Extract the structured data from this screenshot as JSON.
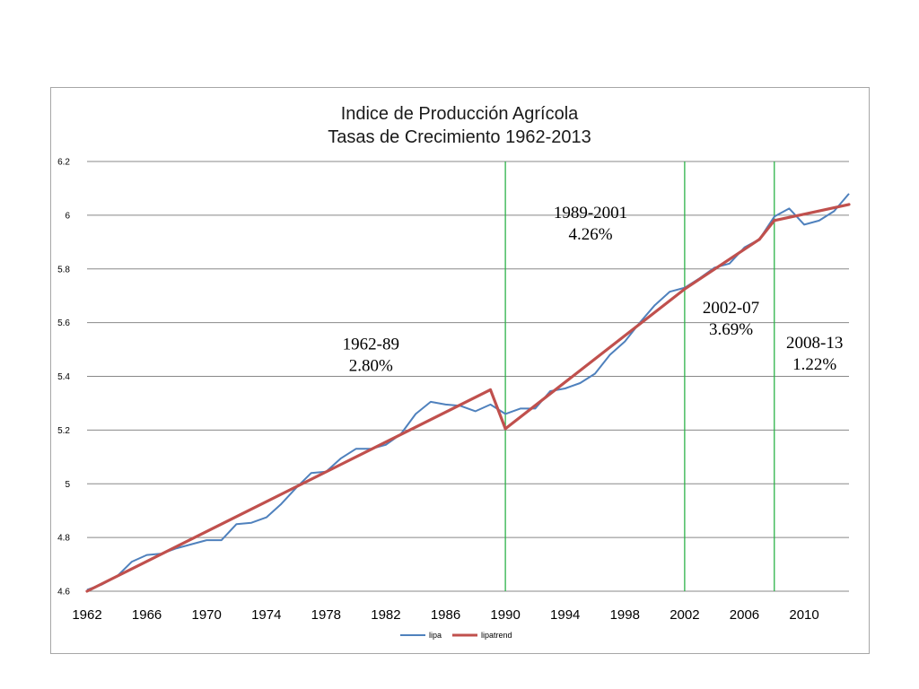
{
  "chart_data": {
    "type": "line",
    "title": [
      "Indice de Producción Agrícola",
      "Tasas de Crecimiento 1962-2013"
    ],
    "xlabel": "",
    "ylabel": "",
    "xlim": [
      1962,
      2013
    ],
    "ylim": [
      4.6,
      6.2
    ],
    "yticks": [
      "4.6",
      "4.8",
      "5",
      "5.2",
      "5.4",
      "5.6",
      "5.8",
      "6",
      "6.2"
    ],
    "xticks": [
      "1962",
      "1966",
      "1970",
      "1974",
      "1978",
      "1982",
      "1986",
      "1990",
      "1994",
      "1998",
      "2002",
      "2006",
      "2010"
    ],
    "grid": "horizontal",
    "legend_position": "bottom",
    "vertical_lines": [
      1990,
      2002,
      2008
    ],
    "series": [
      {
        "name": "lipa",
        "color": "#4f81bd",
        "x": [
          1962,
          1963,
          1964,
          1965,
          1966,
          1967,
          1968,
          1969,
          1970,
          1971,
          1972,
          1973,
          1974,
          1975,
          1976,
          1977,
          1978,
          1979,
          1980,
          1981,
          1982,
          1983,
          1984,
          1985,
          1986,
          1987,
          1988,
          1989,
          1990,
          1991,
          1992,
          1993,
          1994,
          1995,
          1996,
          1997,
          1998,
          1999,
          2000,
          2001,
          2002,
          2003,
          2004,
          2005,
          2006,
          2007,
          2008,
          2009,
          2010,
          2011,
          2012,
          2013
        ],
        "values": [
          4.605,
          4.625,
          4.655,
          4.71,
          4.735,
          4.74,
          4.76,
          4.775,
          4.79,
          4.79,
          4.85,
          4.855,
          4.875,
          4.925,
          4.985,
          5.04,
          5.045,
          5.095,
          5.13,
          5.13,
          5.145,
          5.185,
          5.26,
          5.305,
          5.295,
          5.29,
          5.27,
          5.295,
          5.26,
          5.28,
          5.28,
          5.345,
          5.355,
          5.375,
          5.41,
          5.48,
          5.53,
          5.6,
          5.665,
          5.715,
          5.73,
          5.765,
          5.805,
          5.82,
          5.88,
          5.91,
          5.995,
          6.025,
          5.965,
          5.98,
          6.015,
          6.08
        ]
      },
      {
        "name": "lipatrend",
        "color": "#c0504d",
        "segments": [
          {
            "x": [
              1962,
              1989
            ],
            "values": [
              4.6,
              5.35
            ]
          },
          {
            "x": [
              1989,
              1990
            ],
            "values": [
              5.35,
              5.205
            ]
          },
          {
            "x": [
              1990,
              2002
            ],
            "values": [
              5.205,
              5.725
            ]
          },
          {
            "x": [
              2002,
              2007
            ],
            "values": [
              5.725,
              5.91
            ]
          },
          {
            "x": [
              2007,
              2008
            ],
            "values": [
              5.91,
              5.98
            ]
          },
          {
            "x": [
              2008,
              2013
            ],
            "values": [
              5.98,
              6.04
            ]
          }
        ]
      }
    ],
    "annotations": [
      {
        "lines": [
          "1962-89",
          "2.80%"
        ],
        "at": [
          1981,
          5.5
        ]
      },
      {
        "lines": [
          "1989-2001",
          "4.26%"
        ],
        "at": [
          1995.7,
          5.99
        ]
      },
      {
        "lines": [
          "2002-07",
          "3.69%"
        ],
        "at": [
          2005.1,
          5.635
        ]
      },
      {
        "lines": [
          "2008-13",
          "1.22%"
        ],
        "at": [
          2010.7,
          5.505
        ]
      }
    ]
  }
}
